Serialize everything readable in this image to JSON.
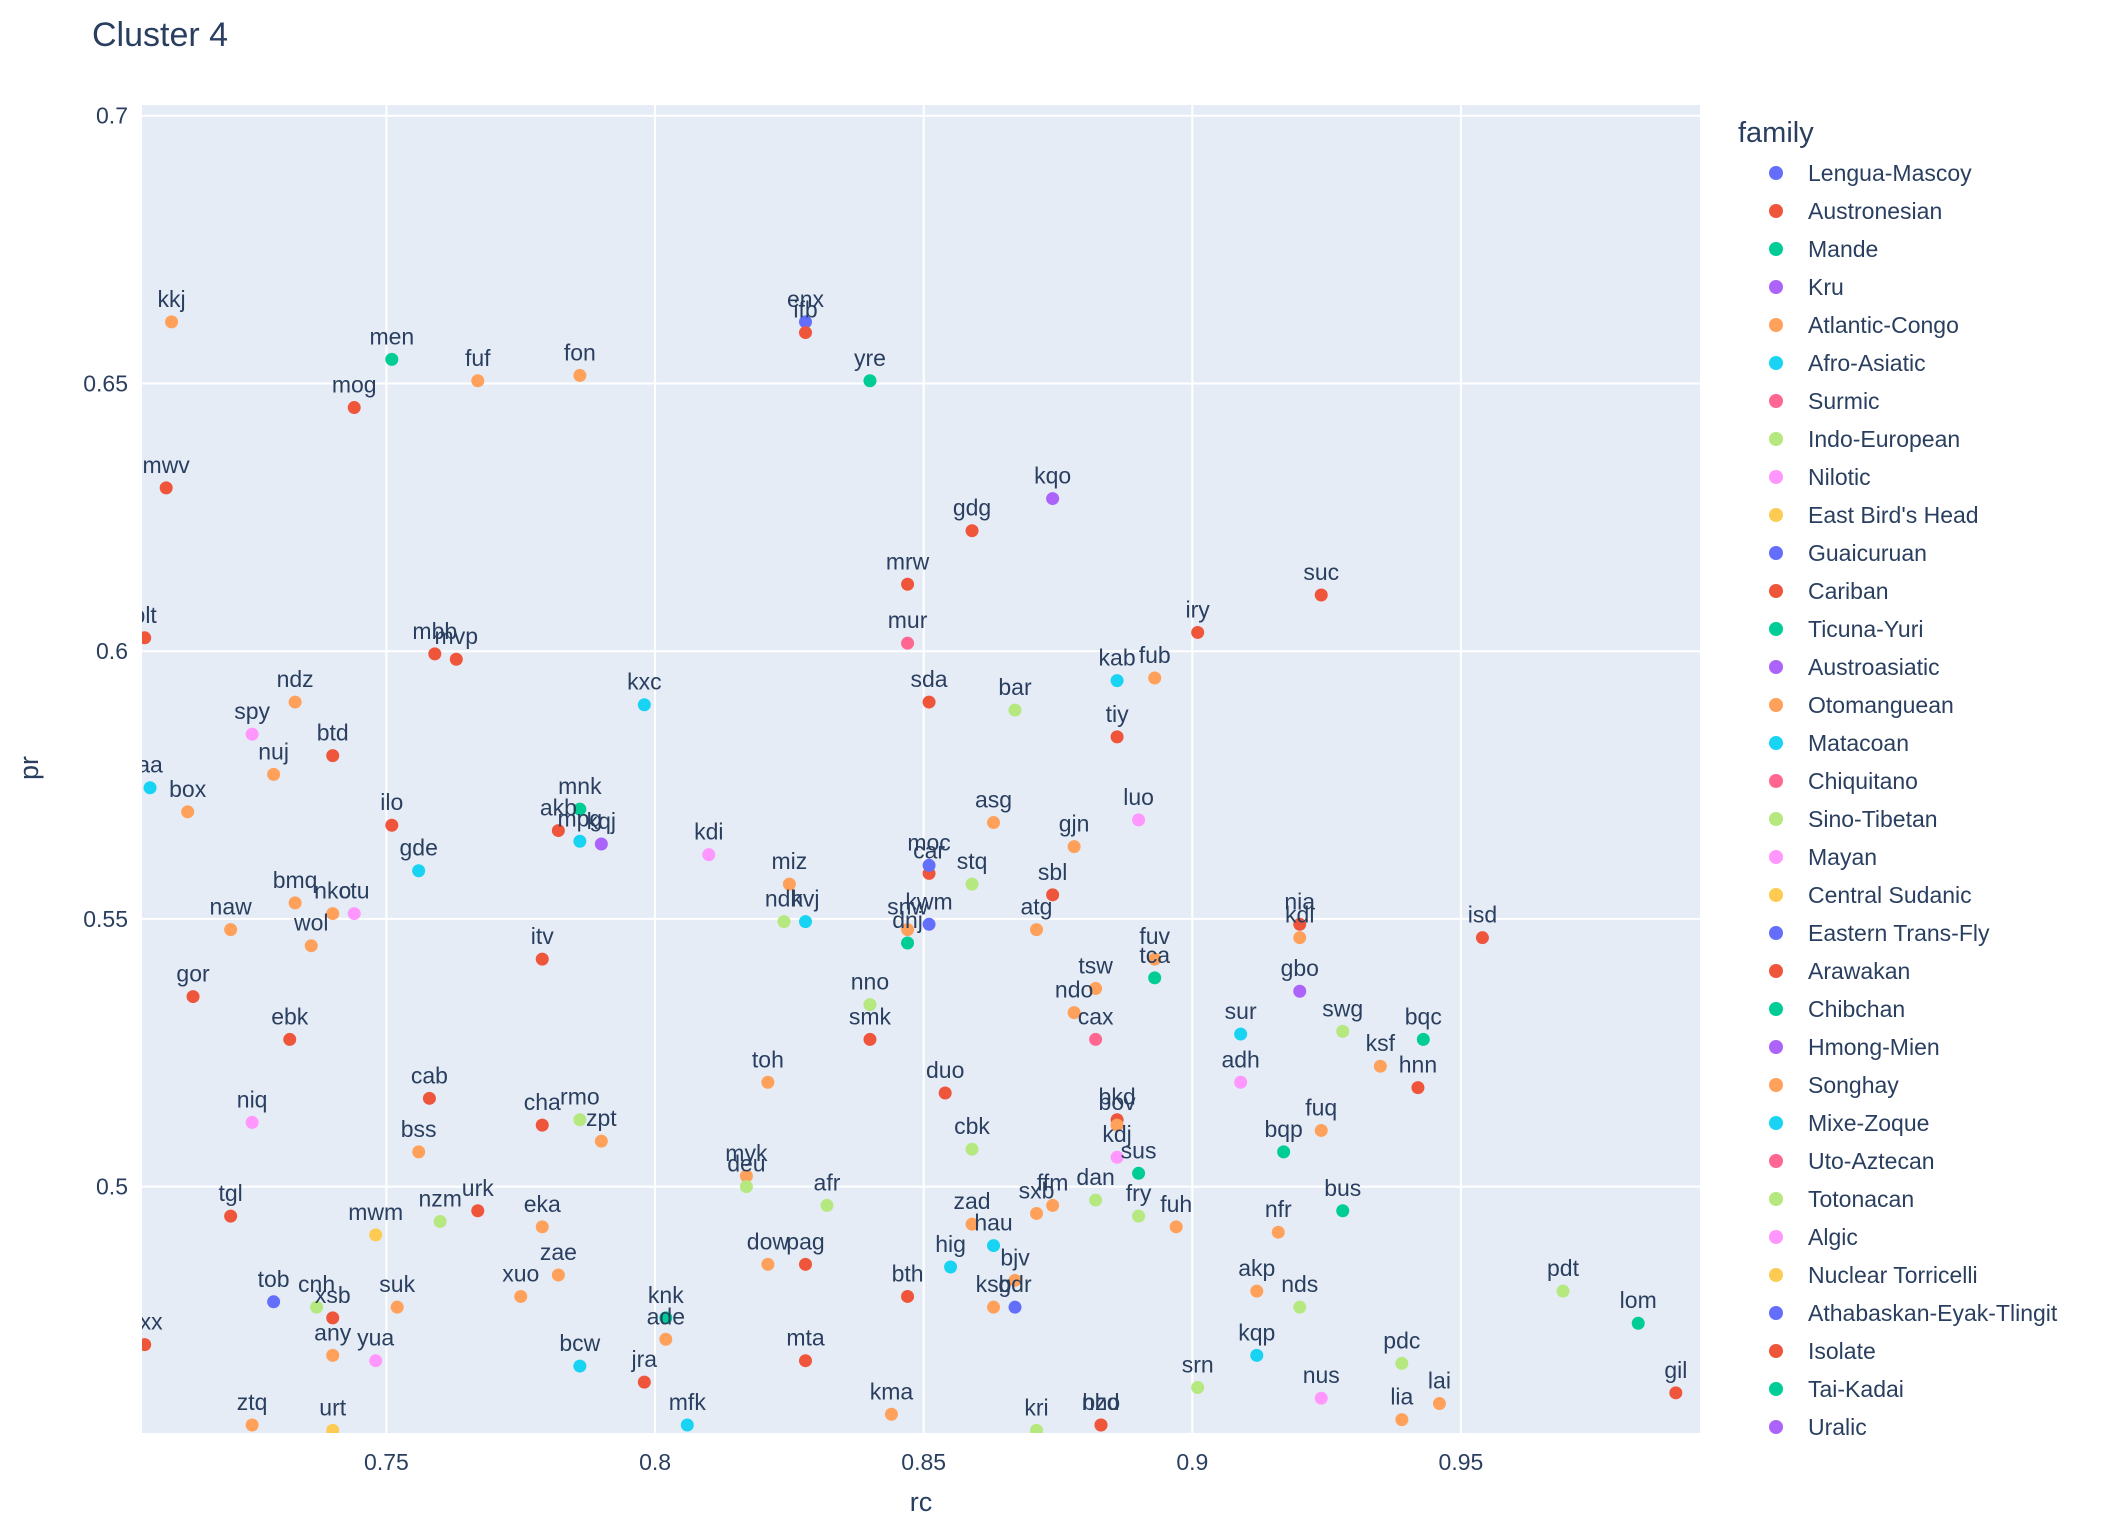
{
  "chart_data": {
    "type": "scatter",
    "title": "Cluster 4",
    "xlabel": "rc",
    "ylabel": "pr",
    "xlim": [
      0.7045,
      0.9945
    ],
    "ylim": [
      0.454,
      0.702
    ],
    "x_ticks": [
      {
        "value": 0.75,
        "label": "0.75"
      },
      {
        "value": 0.8,
        "label": "0.8"
      },
      {
        "value": 0.85,
        "label": "0.85"
      },
      {
        "value": 0.9,
        "label": "0.9"
      },
      {
        "value": 0.95,
        "label": "0.95"
      }
    ],
    "y_ticks": [
      {
        "value": 0.5,
        "label": "0.5"
      },
      {
        "value": 0.55,
        "label": "0.55"
      },
      {
        "value": 0.6,
        "label": "0.6"
      },
      {
        "value": 0.65,
        "label": "0.65"
      },
      {
        "value": 0.7,
        "label": "0.7"
      }
    ],
    "grid": true,
    "legend_title": "family",
    "legend_position": "right",
    "series": [
      {
        "name": "Lengua-Mascoy",
        "color": "#636efa",
        "points": [
          {
            "x": 0.828,
            "y": 0.6615,
            "label": "enx"
          }
        ]
      },
      {
        "name": "Austronesian",
        "color": "#EF553B",
        "points": [
          {
            "x": 0.828,
            "y": 0.6595,
            "label": "ifb"
          },
          {
            "x": 0.744,
            "y": 0.6455,
            "label": "mog"
          },
          {
            "x": 0.709,
            "y": 0.6305,
            "label": "mwv"
          },
          {
            "x": 0.705,
            "y": 0.6025,
            "label": "blt"
          },
          {
            "x": 0.759,
            "y": 0.5995,
            "label": "mbb"
          },
          {
            "x": 0.763,
            "y": 0.5985,
            "label": "mvp"
          },
          {
            "x": 0.74,
            "y": 0.5805,
            "label": "btd"
          },
          {
            "x": 0.751,
            "y": 0.5675,
            "label": "ilo"
          },
          {
            "x": 0.782,
            "y": 0.5665,
            "label": "akb"
          },
          {
            "x": 0.779,
            "y": 0.5425,
            "label": "itv"
          },
          {
            "x": 0.714,
            "y": 0.5355,
            "label": "gor"
          },
          {
            "x": 0.732,
            "y": 0.5275,
            "label": "ebk"
          },
          {
            "x": 0.758,
            "y": 0.5165,
            "label": "cab"
          },
          {
            "x": 0.779,
            "y": 0.5115,
            "label": "cha"
          },
          {
            "x": 0.767,
            "y": 0.4955,
            "label": "urk"
          },
          {
            "x": 0.721,
            "y": 0.4945,
            "label": "tgl"
          },
          {
            "x": 0.74,
            "y": 0.4755,
            "label": "xsb"
          },
          {
            "x": 0.705,
            "y": 0.4705,
            "label": "pxx"
          },
          {
            "x": 0.798,
            "y": 0.4635,
            "label": "jra"
          },
          {
            "x": 0.828,
            "y": 0.4675,
            "label": "mta"
          },
          {
            "x": 0.828,
            "y": 0.4855,
            "label": "pag"
          },
          {
            "x": 0.847,
            "y": 0.4795,
            "label": "bth"
          },
          {
            "x": 0.854,
            "y": 0.5175,
            "label": "duo"
          },
          {
            "x": 0.84,
            "y": 0.5275,
            "label": "smk"
          },
          {
            "x": 0.851,
            "y": 0.5585,
            "label": "car"
          },
          {
            "x": 0.851,
            "y": 0.5905,
            "label": "sda"
          },
          {
            "x": 0.847,
            "y": 0.6125,
            "label": "mrw"
          },
          {
            "x": 0.859,
            "y": 0.6225,
            "label": "gdg"
          },
          {
            "x": 0.874,
            "y": 0.5545,
            "label": "sbl"
          },
          {
            "x": 0.886,
            "y": 0.584,
            "label": "tiy"
          },
          {
            "x": 0.886,
            "y": 0.5125,
            "label": "bkd"
          },
          {
            "x": 0.901,
            "y": 0.6035,
            "label": "iry"
          },
          {
            "x": 0.924,
            "y": 0.6105,
            "label": "suc"
          },
          {
            "x": 0.92,
            "y": 0.549,
            "label": "nia"
          },
          {
            "x": 0.942,
            "y": 0.5185,
            "label": "hnn"
          },
          {
            "x": 0.954,
            "y": 0.5465,
            "label": "isd"
          },
          {
            "x": 0.99,
            "y": 0.4615,
            "label": "gil"
          },
          {
            "x": 0.883,
            "y": 0.4555,
            "label": "nho"
          }
        ]
      },
      {
        "name": "Mande",
        "color": "#00cc96",
        "points": [
          {
            "x": 0.751,
            "y": 0.6545,
            "label": "men"
          },
          {
            "x": 0.84,
            "y": 0.6505,
            "label": "yre"
          },
          {
            "x": 0.786,
            "y": 0.5705,
            "label": "mnk"
          },
          {
            "x": 0.847,
            "y": 0.5455,
            "label": "dnj"
          },
          {
            "x": 0.893,
            "y": 0.539,
            "label": "tca"
          },
          {
            "x": 0.89,
            "y": 0.5025,
            "label": "sus"
          },
          {
            "x": 0.917,
            "y": 0.5065,
            "label": "bqp"
          },
          {
            "x": 0.928,
            "y": 0.4955,
            "label": "bus"
          },
          {
            "x": 0.943,
            "y": 0.5275,
            "label": "bqc"
          },
          {
            "x": 0.983,
            "y": 0.4745,
            "label": "lom"
          },
          {
            "x": 0.802,
            "y": 0.4755,
            "label": "knk"
          }
        ]
      },
      {
        "name": "Kru",
        "color": "#ab63fa",
        "points": [
          {
            "x": 0.874,
            "y": 0.6285,
            "label": "kqo"
          },
          {
            "x": 0.79,
            "y": 0.564,
            "label": "kqj"
          },
          {
            "x": 0.92,
            "y": 0.5365,
            "label": "gbo"
          }
        ]
      },
      {
        "name": "Atlantic-Congo",
        "color": "#FFA15A",
        "points": [
          {
            "x": 0.71,
            "y": 0.6615,
            "label": "kkj"
          },
          {
            "x": 0.767,
            "y": 0.6505,
            "label": "fuf"
          },
          {
            "x": 0.786,
            "y": 0.6515,
            "label": "fon"
          },
          {
            "x": 0.733,
            "y": 0.5905,
            "label": "ndz"
          },
          {
            "x": 0.729,
            "y": 0.577,
            "label": "nuj"
          },
          {
            "x": 0.713,
            "y": 0.57,
            "label": "box"
          },
          {
            "x": 0.733,
            "y": 0.553,
            "label": "bmq"
          },
          {
            "x": 0.74,
            "y": 0.551,
            "label": "nko"
          },
          {
            "x": 0.736,
            "y": 0.545,
            "label": "wol"
          },
          {
            "x": 0.721,
            "y": 0.548,
            "label": "naw"
          },
          {
            "x": 0.756,
            "y": 0.5065,
            "label": "bss"
          },
          {
            "x": 0.79,
            "y": 0.5085,
            "label": "zpt"
          },
          {
            "x": 0.779,
            "y": 0.4925,
            "label": "eka"
          },
          {
            "x": 0.782,
            "y": 0.4835,
            "label": "zae"
          },
          {
            "x": 0.775,
            "y": 0.4795,
            "label": "xuo"
          },
          {
            "x": 0.752,
            "y": 0.4775,
            "label": "suk"
          },
          {
            "x": 0.74,
            "y": 0.4685,
            "label": "any"
          },
          {
            "x": 0.725,
            "y": 0.4555,
            "label": "ztq"
          },
          {
            "x": 0.802,
            "y": 0.4715,
            "label": "ade"
          },
          {
            "x": 0.821,
            "y": 0.4855,
            "label": "dow"
          },
          {
            "x": 0.817,
            "y": 0.502,
            "label": "myk"
          },
          {
            "x": 0.821,
            "y": 0.5195,
            "label": "toh"
          },
          {
            "x": 0.825,
            "y": 0.5565,
            "label": "miz"
          },
          {
            "x": 0.847,
            "y": 0.548,
            "label": "snw"
          },
          {
            "x": 0.863,
            "y": 0.568,
            "label": "asg"
          },
          {
            "x": 0.871,
            "y": 0.548,
            "label": "atg"
          },
          {
            "x": 0.878,
            "y": 0.5635,
            "label": "gjn"
          },
          {
            "x": 0.882,
            "y": 0.537,
            "label": "tsw"
          },
          {
            "x": 0.878,
            "y": 0.5325,
            "label": "ndo"
          },
          {
            "x": 0.886,
            "y": 0.5115,
            "label": "bov"
          },
          {
            "x": 0.893,
            "y": 0.5425,
            "label": "fuv"
          },
          {
            "x": 0.893,
            "y": 0.595,
            "label": "fub"
          },
          {
            "x": 0.92,
            "y": 0.5465,
            "label": "kdl"
          },
          {
            "x": 0.935,
            "y": 0.5225,
            "label": "ksf"
          },
          {
            "x": 0.924,
            "y": 0.5105,
            "label": "fuq"
          },
          {
            "x": 0.916,
            "y": 0.4915,
            "label": "nfr"
          },
          {
            "x": 0.912,
            "y": 0.4805,
            "label": "akp"
          },
          {
            "x": 0.897,
            "y": 0.4925,
            "label": "fuh"
          },
          {
            "x": 0.874,
            "y": 0.4965,
            "label": "ffm"
          },
          {
            "x": 0.871,
            "y": 0.495,
            "label": "sxb"
          },
          {
            "x": 0.859,
            "y": 0.493,
            "label": "zad"
          },
          {
            "x": 0.863,
            "y": 0.4775,
            "label": "ksb"
          },
          {
            "x": 0.867,
            "y": 0.4825,
            "label": "bjv"
          },
          {
            "x": 0.844,
            "y": 0.4575,
            "label": "kma"
          },
          {
            "x": 0.939,
            "y": 0.4565,
            "label": "lia"
          },
          {
            "x": 0.946,
            "y": 0.4595,
            "label": "lai"
          }
        ]
      },
      {
        "name": "Afro-Asiatic",
        "color": "#19d3f3",
        "points": [
          {
            "x": 0.706,
            "y": 0.5745,
            "label": "aa"
          },
          {
            "x": 0.798,
            "y": 0.59,
            "label": "kxc"
          },
          {
            "x": 0.756,
            "y": 0.559,
            "label": "gde"
          },
          {
            "x": 0.786,
            "y": 0.5645,
            "label": "mpg"
          },
          {
            "x": 0.828,
            "y": 0.5495,
            "label": "kvj"
          },
          {
            "x": 0.886,
            "y": 0.5945,
            "label": "kab"
          },
          {
            "x": 0.909,
            "y": 0.5285,
            "label": "sur"
          },
          {
            "x": 0.863,
            "y": 0.489,
            "label": "hau"
          },
          {
            "x": 0.855,
            "y": 0.485,
            "label": "hig"
          },
          {
            "x": 0.786,
            "y": 0.4665,
            "label": "bcw"
          },
          {
            "x": 0.806,
            "y": 0.4555,
            "label": "mfk"
          },
          {
            "x": 0.912,
            "y": 0.4685,
            "label": "kqp"
          }
        ]
      },
      {
        "name": "Surmic",
        "color": "#FF6692",
        "points": [
          {
            "x": 0.847,
            "y": 0.6015,
            "label": "mur"
          },
          {
            "x": 0.882,
            "y": 0.5275,
            "label": "cax"
          }
        ]
      },
      {
        "name": "Indo-European",
        "color": "#B6E880",
        "points": [
          {
            "x": 0.867,
            "y": 0.589,
            "label": "bar"
          },
          {
            "x": 0.859,
            "y": 0.5565,
            "label": "stq"
          },
          {
            "x": 0.824,
            "y": 0.5495,
            "label": "ndh"
          },
          {
            "x": 0.84,
            "y": 0.534,
            "label": "nno"
          },
          {
            "x": 0.859,
            "y": 0.507,
            "label": "cbk"
          },
          {
            "x": 0.817,
            "y": 0.5,
            "label": "deu"
          },
          {
            "x": 0.832,
            "y": 0.4965,
            "label": "afr"
          },
          {
            "x": 0.786,
            "y": 0.5125,
            "label": "rmo"
          },
          {
            "x": 0.76,
            "y": 0.4935,
            "label": "nzm"
          },
          {
            "x": 0.882,
            "y": 0.4975,
            "label": "dan"
          },
          {
            "x": 0.89,
            "y": 0.4945,
            "label": "fry"
          },
          {
            "x": 0.928,
            "y": 0.529,
            "label": "swg"
          },
          {
            "x": 0.92,
            "y": 0.4775,
            "label": "nds"
          },
          {
            "x": 0.939,
            "y": 0.467,
            "label": "pdc"
          },
          {
            "x": 0.969,
            "y": 0.4805,
            "label": "pdt"
          },
          {
            "x": 0.901,
            "y": 0.4625,
            "label": "srn"
          },
          {
            "x": 0.737,
            "y": 0.4775,
            "label": "cnh"
          },
          {
            "x": 0.871,
            "y": 0.4545,
            "label": "kri"
          }
        ]
      },
      {
        "name": "Nilotic",
        "color": "#FF97FF",
        "points": [
          {
            "x": 0.725,
            "y": 0.5845,
            "label": "spy"
          },
          {
            "x": 0.744,
            "y": 0.551,
            "label": "ctu"
          },
          {
            "x": 0.81,
            "y": 0.562,
            "label": "kdi"
          },
          {
            "x": 0.89,
            "y": 0.5685,
            "label": "luo"
          },
          {
            "x": 0.725,
            "y": 0.512,
            "label": "niq"
          },
          {
            "x": 0.909,
            "y": 0.5195,
            "label": "adh"
          },
          {
            "x": 0.886,
            "y": 0.5055,
            "label": "kdj"
          },
          {
            "x": 0.748,
            "y": 0.4675,
            "label": "yua"
          },
          {
            "x": 0.924,
            "y": 0.4605,
            "label": "nus"
          }
        ]
      },
      {
        "name": "East Bird's Head",
        "color": "#FECB52",
        "points": [
          {
            "x": 0.748,
            "y": 0.491,
            "label": "mwm"
          },
          {
            "x": 0.74,
            "y": 0.4545,
            "label": "urt"
          }
        ]
      },
      {
        "name": "Guaicuruan",
        "color": "#636efa",
        "points": [
          {
            "x": 0.729,
            "y": 0.4785,
            "label": "tob"
          },
          {
            "x": 0.851,
            "y": 0.549,
            "label": "kwm"
          },
          {
            "x": 0.851,
            "y": 0.56,
            "label": "moc"
          },
          {
            "x": 0.867,
            "y": 0.4775,
            "label": "gdr"
          }
        ]
      },
      {
        "name": "Cariban",
        "color": "#EF553B",
        "points": [
          {
            "x": 0.883,
            "y": 0.4555,
            "label": "bzd"
          }
        ]
      },
      {
        "name": "Ticuna-Yuri",
        "color": "#00cc96",
        "points": []
      },
      {
        "name": "Austroasiatic",
        "color": "#ab63fa",
        "points": []
      },
      {
        "name": "Otomanguean",
        "color": "#FFA15A",
        "points": []
      },
      {
        "name": "Matacoan",
        "color": "#19d3f3",
        "points": []
      },
      {
        "name": "Chiquitano",
        "color": "#FF6692",
        "points": []
      },
      {
        "name": "Sino-Tibetan",
        "color": "#B6E880",
        "points": []
      },
      {
        "name": "Mayan",
        "color": "#FF97FF",
        "points": []
      },
      {
        "name": "Central Sudanic",
        "color": "#FECB52",
        "points": []
      },
      {
        "name": "Eastern Trans-Fly",
        "color": "#636efa",
        "points": []
      },
      {
        "name": "Arawakan",
        "color": "#EF553B",
        "points": []
      },
      {
        "name": "Chibchan",
        "color": "#00cc96",
        "points": []
      },
      {
        "name": "Hmong-Mien",
        "color": "#ab63fa",
        "points": []
      },
      {
        "name": "Songhay",
        "color": "#FFA15A",
        "points": []
      },
      {
        "name": "Mixe-Zoque",
        "color": "#19d3f3",
        "points": []
      },
      {
        "name": "Uto-Aztecan",
        "color": "#FF6692",
        "points": []
      },
      {
        "name": "Totonacan",
        "color": "#B6E880",
        "points": []
      },
      {
        "name": "Algic",
        "color": "#FF97FF",
        "points": []
      },
      {
        "name": "Nuclear Torricelli",
        "color": "#FECB52",
        "points": []
      },
      {
        "name": "Athabaskan-Eyak-Tlingit",
        "color": "#636efa",
        "points": []
      },
      {
        "name": "Isolate",
        "color": "#EF553B",
        "points": []
      },
      {
        "name": "Tai-Kadai",
        "color": "#00cc96",
        "points": []
      },
      {
        "name": "Uralic",
        "color": "#ab63fa",
        "points": []
      }
    ]
  }
}
